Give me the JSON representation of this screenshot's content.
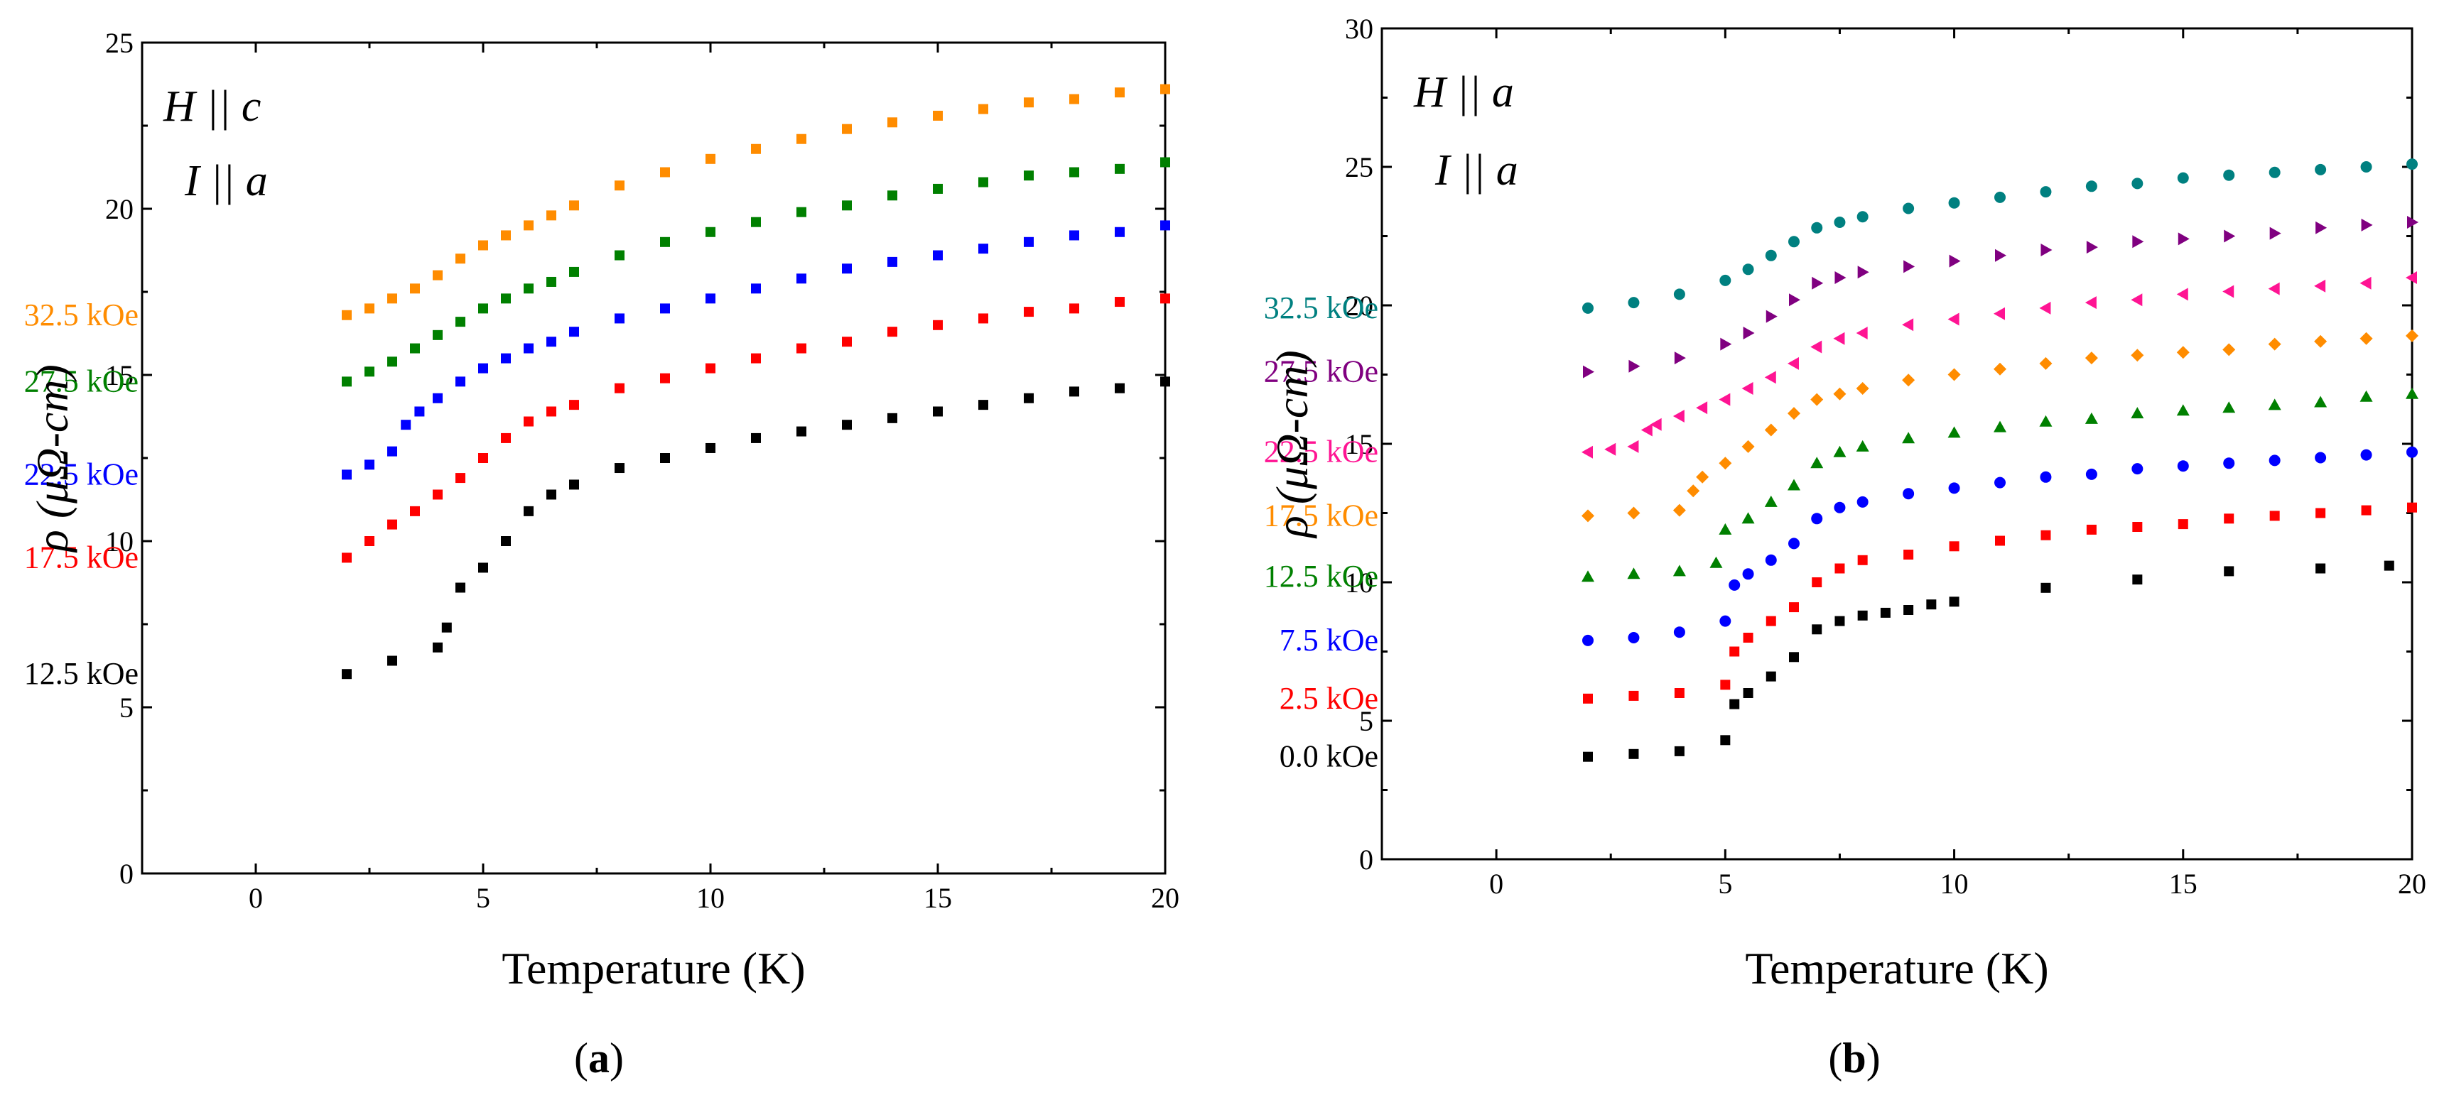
{
  "colors": {
    "black": "#000000",
    "red": "#ff0000",
    "blue": "#0000ff",
    "green": "#008000",
    "orange": "#ff8c00",
    "pink": "#ff1493",
    "purple": "#800080",
    "teal": "#008080"
  },
  "chart_data": [
    {
      "type": "scatter",
      "panel_label": "a",
      "annotation_line1": "H || c",
      "annotation_line2": "I || a",
      "xlabel": "Temperature (K)",
      "ylabel": "ρ (μΩ-cm)",
      "xlim": [
        -2.5,
        20
      ],
      "ylim": [
        0,
        25
      ],
      "xticks": [
        0,
        5,
        10,
        15,
        20
      ],
      "yticks": [
        0,
        5,
        10,
        15,
        20,
        25
      ],
      "grid": false,
      "series": [
        {
          "name": "12.5 kOe",
          "color": "black",
          "marker": "square",
          "x": [
            2.0,
            3.0,
            4.0,
            4.2,
            4.5,
            5.0,
            5.5,
            6.0,
            6.5,
            7.0,
            8.0,
            9.0,
            10.0,
            11.0,
            12.0,
            13.0,
            14.0,
            15.0,
            16.0,
            17.0,
            18.0,
            19.0,
            20.0
          ],
          "y": [
            6.0,
            6.4,
            6.8,
            7.4,
            8.6,
            9.2,
            10.0,
            10.9,
            11.4,
            11.7,
            12.2,
            12.5,
            12.8,
            13.1,
            13.3,
            13.5,
            13.7,
            13.9,
            14.1,
            14.3,
            14.5,
            14.6,
            14.8
          ]
        },
        {
          "name": "17.5 kOe",
          "color": "red",
          "marker": "square",
          "x": [
            2.0,
            2.5,
            3.0,
            3.5,
            4.0,
            4.5,
            5.0,
            5.5,
            6.0,
            6.5,
            7.0,
            8.0,
            9.0,
            10.0,
            11.0,
            12.0,
            13.0,
            14.0,
            15.0,
            16.0,
            17.0,
            18.0,
            19.0,
            20.0
          ],
          "y": [
            9.5,
            10.0,
            10.5,
            10.9,
            11.4,
            11.9,
            12.5,
            13.1,
            13.6,
            13.9,
            14.1,
            14.6,
            14.9,
            15.2,
            15.5,
            15.8,
            16.0,
            16.3,
            16.5,
            16.7,
            16.9,
            17.0,
            17.2,
            17.3
          ]
        },
        {
          "name": "22.5 kOe",
          "color": "blue",
          "marker": "square",
          "x": [
            2.0,
            2.5,
            3.0,
            3.3,
            3.6,
            4.0,
            4.5,
            5.0,
            5.5,
            6.0,
            6.5,
            7.0,
            8.0,
            9.0,
            10.0,
            11.0,
            12.0,
            13.0,
            14.0,
            15.0,
            16.0,
            17.0,
            18.0,
            19.0,
            20.0
          ],
          "y": [
            12.0,
            12.3,
            12.7,
            13.5,
            13.9,
            14.3,
            14.8,
            15.2,
            15.5,
            15.8,
            16.0,
            16.3,
            16.7,
            17.0,
            17.3,
            17.6,
            17.9,
            18.2,
            18.4,
            18.6,
            18.8,
            19.0,
            19.2,
            19.3,
            19.5
          ]
        },
        {
          "name": "27.5 kOe",
          "color": "green",
          "marker": "square",
          "x": [
            2.0,
            2.5,
            3.0,
            3.5,
            4.0,
            4.5,
            5.0,
            5.5,
            6.0,
            6.5,
            7.0,
            8.0,
            9.0,
            10.0,
            11.0,
            12.0,
            13.0,
            14.0,
            15.0,
            16.0,
            17.0,
            18.0,
            19.0,
            20.0
          ],
          "y": [
            14.8,
            15.1,
            15.4,
            15.8,
            16.2,
            16.6,
            17.0,
            17.3,
            17.6,
            17.8,
            18.1,
            18.6,
            19.0,
            19.3,
            19.6,
            19.9,
            20.1,
            20.4,
            20.6,
            20.8,
            21.0,
            21.1,
            21.2,
            21.4
          ]
        },
        {
          "name": "32.5 kOe",
          "color": "orange",
          "marker": "square",
          "x": [
            2.0,
            2.5,
            3.0,
            3.5,
            4.0,
            4.5,
            5.0,
            5.5,
            6.0,
            6.5,
            7.0,
            8.0,
            9.0,
            10.0,
            11.0,
            12.0,
            13.0,
            14.0,
            15.0,
            16.0,
            17.0,
            18.0,
            19.0,
            20.0
          ],
          "y": [
            16.8,
            17.0,
            17.3,
            17.6,
            18.0,
            18.5,
            18.9,
            19.2,
            19.5,
            19.8,
            20.1,
            20.7,
            21.1,
            21.5,
            21.8,
            22.1,
            22.4,
            22.6,
            22.8,
            23.0,
            23.2,
            23.3,
            23.5,
            23.6
          ]
        }
      ]
    },
    {
      "type": "scatter",
      "panel_label": "b",
      "annotation_line1": "H || a",
      "annotation_line2": "I || a",
      "xlabel": "Temperature (K)",
      "ylabel": "ρ (μΩ-cm)",
      "xlim": [
        -2.5,
        20
      ],
      "ylim": [
        0,
        30
      ],
      "xticks": [
        0,
        5,
        10,
        15,
        20
      ],
      "yticks": [
        0,
        5,
        10,
        15,
        20,
        25,
        30
      ],
      "grid": false,
      "series": [
        {
          "name": "0.0 kOe",
          "color": "black",
          "marker": "square",
          "x": [
            2.0,
            3.0,
            4.0,
            5.0,
            5.2,
            5.5,
            6.0,
            6.5,
            7.0,
            7.5,
            8.0,
            8.5,
            9.0,
            9.5,
            10.0,
            12.0,
            14.0,
            16.0,
            18.0,
            19.5
          ],
          "y": [
            3.7,
            3.8,
            3.9,
            4.3,
            5.6,
            6.0,
            6.6,
            7.3,
            8.3,
            8.6,
            8.8,
            8.9,
            9.0,
            9.2,
            9.3,
            9.8,
            10.1,
            10.4,
            10.5,
            10.6
          ]
        },
        {
          "name": "2.5 kOe",
          "color": "red",
          "marker": "square",
          "x": [
            2.0,
            3.0,
            4.0,
            5.0,
            5.2,
            5.5,
            6.0,
            6.5,
            7.0,
            7.5,
            8.0,
            9.0,
            10.0,
            11.0,
            12.0,
            13.0,
            14.0,
            15.0,
            16.0,
            17.0,
            18.0,
            19.0,
            20.0
          ],
          "y": [
            5.8,
            5.9,
            6.0,
            6.3,
            7.5,
            8.0,
            8.6,
            9.1,
            10.0,
            10.5,
            10.8,
            11.0,
            11.3,
            11.5,
            11.7,
            11.9,
            12.0,
            12.1,
            12.3,
            12.4,
            12.5,
            12.6,
            12.7
          ]
        },
        {
          "name": "7.5 kOe",
          "color": "blue",
          "marker": "circle",
          "x": [
            2.0,
            3.0,
            4.0,
            5.0,
            5.2,
            5.5,
            6.0,
            6.5,
            7.0,
            7.5,
            8.0,
            9.0,
            10.0,
            11.0,
            12.0,
            13.0,
            14.0,
            15.0,
            16.0,
            17.0,
            18.0,
            19.0,
            20.0
          ],
          "y": [
            7.9,
            8.0,
            8.2,
            8.6,
            9.9,
            10.3,
            10.8,
            11.4,
            12.3,
            12.7,
            12.9,
            13.2,
            13.4,
            13.6,
            13.8,
            13.9,
            14.1,
            14.2,
            14.3,
            14.4,
            14.5,
            14.6,
            14.7
          ]
        },
        {
          "name": "12.5 kOe",
          "color": "green",
          "marker": "triangle-up",
          "x": [
            2.0,
            3.0,
            4.0,
            4.8,
            5.0,
            5.5,
            6.0,
            6.5,
            7.0,
            7.5,
            8.0,
            9.0,
            10.0,
            11.0,
            12.0,
            13.0,
            14.0,
            15.0,
            16.0,
            17.0,
            18.0,
            19.0,
            20.0
          ],
          "y": [
            10.2,
            10.3,
            10.4,
            10.7,
            11.9,
            12.3,
            12.9,
            13.5,
            14.3,
            14.7,
            14.9,
            15.2,
            15.4,
            15.6,
            15.8,
            15.9,
            16.1,
            16.2,
            16.3,
            16.4,
            16.5,
            16.7,
            16.8
          ]
        },
        {
          "name": "17.5 kOe",
          "color": "orange",
          "marker": "diamond",
          "x": [
            2.0,
            3.0,
            4.0,
            4.3,
            4.5,
            5.0,
            5.5,
            6.0,
            6.5,
            7.0,
            7.5,
            8.0,
            9.0,
            10.0,
            11.0,
            12.0,
            13.0,
            14.0,
            15.0,
            16.0,
            17.0,
            18.0,
            19.0,
            20.0
          ],
          "y": [
            12.4,
            12.5,
            12.6,
            13.3,
            13.8,
            14.3,
            14.9,
            15.5,
            16.1,
            16.6,
            16.8,
            17.0,
            17.3,
            17.5,
            17.7,
            17.9,
            18.1,
            18.2,
            18.3,
            18.4,
            18.6,
            18.7,
            18.8,
            18.9
          ]
        },
        {
          "name": "22.5 kOe",
          "color": "pink",
          "marker": "triangle-left",
          "x": [
            2.0,
            2.5,
            3.0,
            3.3,
            3.5,
            4.0,
            4.5,
            5.0,
            5.5,
            6.0,
            6.5,
            7.0,
            7.5,
            8.0,
            9.0,
            10.0,
            11.0,
            12.0,
            13.0,
            14.0,
            15.0,
            16.0,
            17.0,
            18.0,
            19.0,
            20.0
          ],
          "y": [
            14.7,
            14.8,
            14.9,
            15.5,
            15.7,
            16.0,
            16.3,
            16.6,
            17.0,
            17.4,
            17.9,
            18.5,
            18.8,
            19.0,
            19.3,
            19.5,
            19.7,
            19.9,
            20.1,
            20.2,
            20.4,
            20.5,
            20.6,
            20.7,
            20.8,
            21.0
          ]
        },
        {
          "name": "27.5 kOe",
          "color": "purple",
          "marker": "triangle-right",
          "x": [
            2.0,
            3.0,
            4.0,
            5.0,
            5.5,
            6.0,
            6.5,
            7.0,
            7.5,
            8.0,
            9.0,
            10.0,
            11.0,
            12.0,
            13.0,
            14.0,
            15.0,
            16.0,
            17.0,
            18.0,
            19.0,
            20.0
          ],
          "y": [
            17.6,
            17.8,
            18.1,
            18.6,
            19.0,
            19.6,
            20.2,
            20.8,
            21.0,
            21.2,
            21.4,
            21.6,
            21.8,
            22.0,
            22.1,
            22.3,
            22.4,
            22.5,
            22.6,
            22.8,
            22.9,
            23.0
          ]
        },
        {
          "name": "32.5 kOe",
          "color": "teal",
          "marker": "circle",
          "x": [
            2.0,
            3.0,
            4.0,
            5.0,
            5.5,
            6.0,
            6.5,
            7.0,
            7.5,
            8.0,
            9.0,
            10.0,
            11.0,
            12.0,
            13.0,
            14.0,
            15.0,
            16.0,
            17.0,
            18.0,
            19.0,
            20.0
          ],
          "y": [
            19.9,
            20.1,
            20.4,
            20.9,
            21.3,
            21.8,
            22.3,
            22.8,
            23.0,
            23.2,
            23.5,
            23.7,
            23.9,
            24.1,
            24.3,
            24.4,
            24.6,
            24.7,
            24.8,
            24.9,
            25.0,
            25.1
          ]
        }
      ]
    }
  ]
}
